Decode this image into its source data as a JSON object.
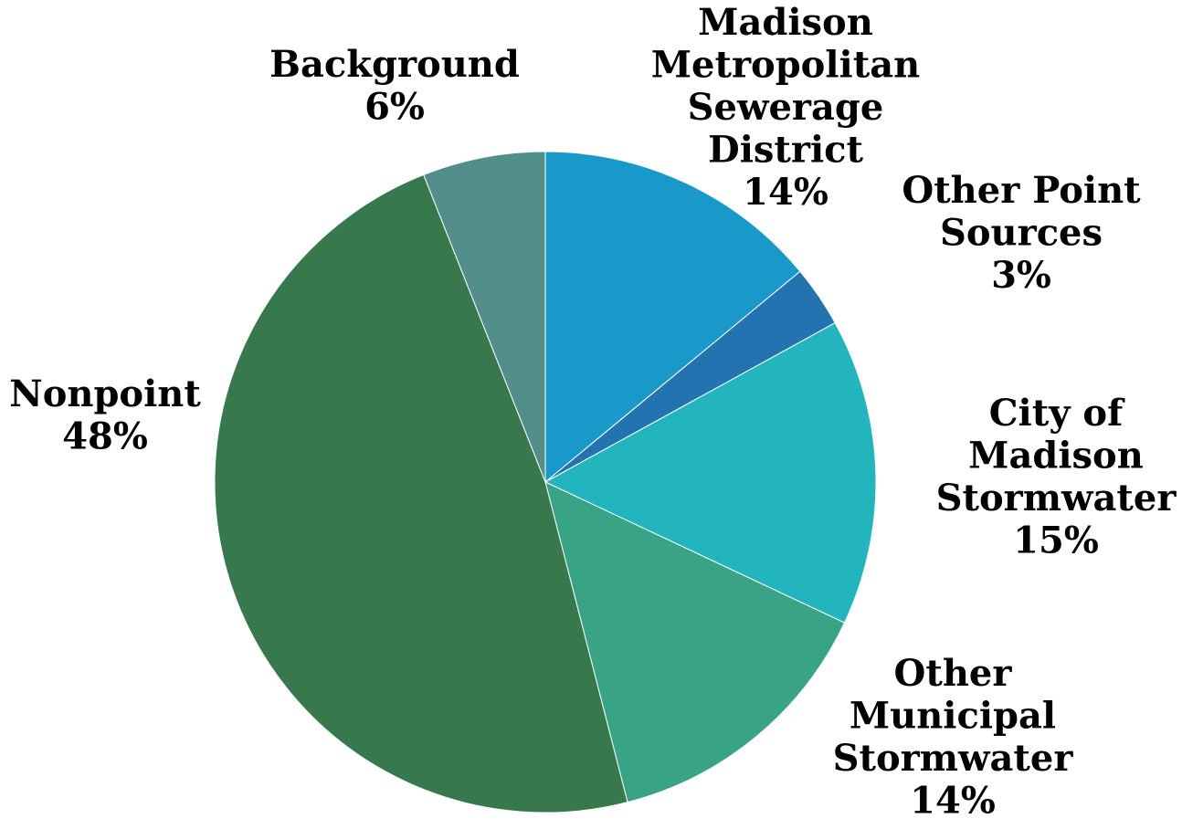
{
  "chart_data": {
    "type": "pie",
    "title": "",
    "start_angle_deg": 0,
    "direction": "clockwise",
    "legend": "none",
    "slices": [
      {
        "label_lines": [
          "Madison",
          "Metropolitan",
          "Sewerage",
          "District"
        ],
        "percent_label": "14%",
        "value": 14,
        "color": "#1999C9"
      },
      {
        "label_lines": [
          "Other Point",
          "Sources"
        ],
        "percent_label": "3%",
        "value": 3,
        "color": "#2273AF"
      },
      {
        "label_lines": [
          "City of",
          "Madison",
          "Stormwater"
        ],
        "percent_label": "15%",
        "value": 15,
        "color": "#22B5BE"
      },
      {
        "label_lines": [
          "Other",
          "Municipal",
          "Stormwater"
        ],
        "percent_label": "14%",
        "value": 14,
        "color": "#38A385"
      },
      {
        "label_lines": [
          "Nonpoint"
        ],
        "percent_label": "48%",
        "value": 48,
        "color": "#37784C"
      },
      {
        "label_lines": [
          "Background"
        ],
        "percent_label": "6%",
        "value": 6,
        "color": "#538F8A"
      }
    ]
  }
}
